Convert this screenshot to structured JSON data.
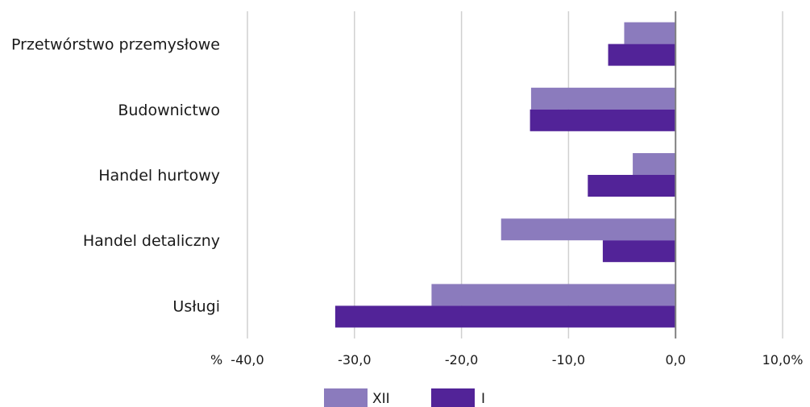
{
  "chart_data": {
    "type": "bar",
    "orientation": "horizontal",
    "categories": [
      "Przetwórstwo przemysłowe",
      "Budownictwo",
      "Handel hurtowy",
      "Handel detaliczny",
      "Usługi"
    ],
    "series": [
      {
        "name": "XII",
        "color": "#8b7bbd",
        "values": [
          -4.8,
          -13.5,
          -4.0,
          -16.3,
          -22.8
        ]
      },
      {
        "name": "I",
        "color": "#522398",
        "values": [
          -6.3,
          -13.6,
          -8.2,
          -6.8,
          -31.8
        ]
      }
    ],
    "x_ticks": [
      "-40,0",
      "-30,0",
      "-20,0",
      "-10,0",
      "0,0",
      "10,0%"
    ],
    "x_tick_values": [
      -40,
      -30,
      -20,
      -10,
      0,
      10
    ],
    "x_unit_label": "%",
    "xlim": [
      -40,
      10
    ],
    "grid": true,
    "legend_position": "bottom"
  }
}
